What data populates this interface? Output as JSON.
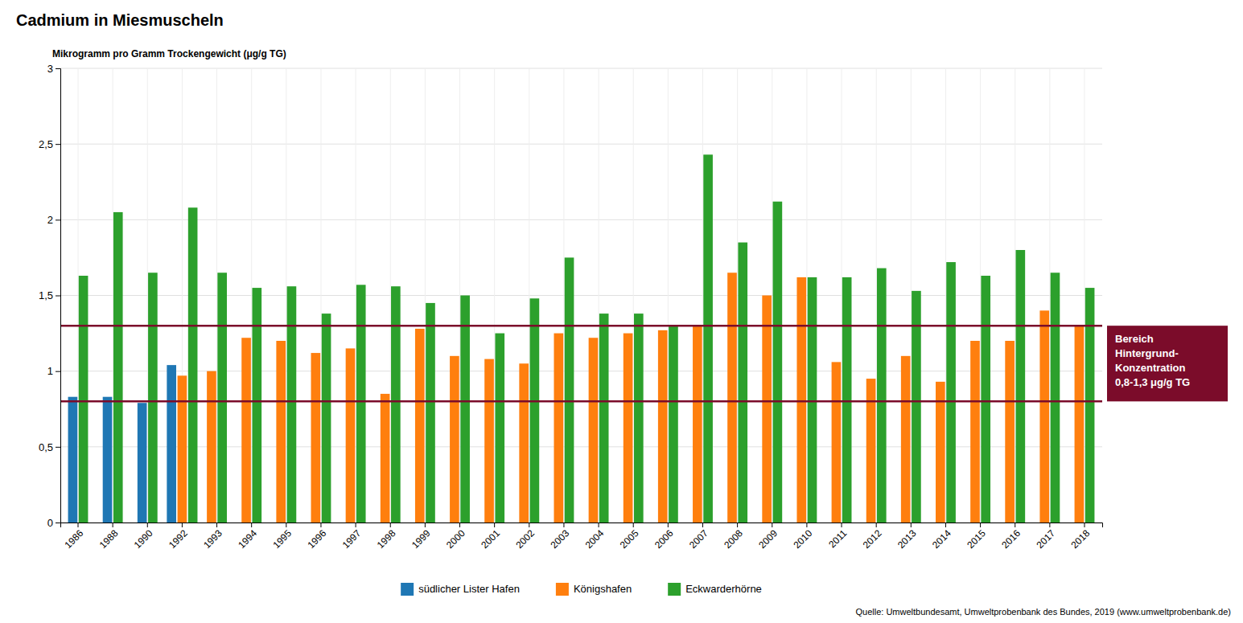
{
  "chart_data": {
    "type": "bar",
    "title": "Cadmium in Miesmuscheln",
    "ylabel": "Mikrogramm pro Gramm Trockengewicht (μg/g TG)",
    "categories": [
      "1986",
      "1988",
      "1990",
      "1992",
      "1993",
      "1994",
      "1995",
      "1996",
      "1997",
      "1998",
      "1999",
      "2000",
      "2001",
      "2002",
      "2003",
      "2004",
      "2005",
      "2006",
      "2007",
      "2008",
      "2009",
      "2010",
      "2011",
      "2012",
      "2013",
      "2014",
      "2015",
      "2016",
      "2017",
      "2018"
    ],
    "series": [
      {
        "name": "südlicher Lister Hafen",
        "values": [
          0.83,
          0.83,
          0.79,
          1.04,
          null,
          null,
          null,
          null,
          null,
          null,
          null,
          null,
          null,
          null,
          null,
          null,
          null,
          null,
          null,
          null,
          null,
          null,
          null,
          null,
          null,
          null,
          null,
          null,
          null,
          null
        ]
      },
      {
        "name": "Königshafen",
        "values": [
          null,
          null,
          null,
          0.97,
          1.0,
          1.22,
          1.2,
          1.12,
          1.15,
          0.85,
          1.28,
          1.1,
          1.08,
          1.05,
          1.25,
          1.22,
          1.25,
          1.27,
          1.3,
          1.65,
          1.5,
          1.62,
          1.06,
          0.95,
          1.1,
          0.93,
          1.2,
          1.2,
          1.4,
          1.3
        ]
      },
      {
        "name": "Eckwarderhörne",
        "values": [
          1.63,
          2.05,
          1.65,
          2.08,
          1.65,
          1.55,
          1.56,
          1.38,
          1.57,
          1.56,
          1.45,
          1.5,
          1.25,
          1.48,
          1.75,
          1.38,
          1.38,
          1.3,
          2.43,
          1.85,
          2.12,
          1.62,
          1.62,
          1.68,
          1.53,
          1.72,
          1.63,
          1.8,
          1.65,
          1.55
        ]
      }
    ],
    "ylim": [
      0,
      3
    ],
    "yticks": [
      0,
      {
        "value": 0.5,
        "label": "0,5"
      },
      1,
      {
        "value": 1.5,
        "label": "1,5"
      },
      2,
      {
        "value": 2.5,
        "label": "2,5"
      },
      3
    ],
    "reference_lines": [
      {
        "value": 1.3,
        "color": "#7B0C2A"
      },
      {
        "value": 0.8,
        "color": "#7B0C2A"
      }
    ],
    "annotations": [
      "Bereich\nHintergrund-\nKonzentration\n0,8-1,3 μg/g TG"
    ],
    "source": "Quelle: Umweltbundesamt, Umweltprobenbank des Bundes, 2019 (www.umweltprobenbank.de)",
    "grid": true,
    "legend": "bottom"
  }
}
